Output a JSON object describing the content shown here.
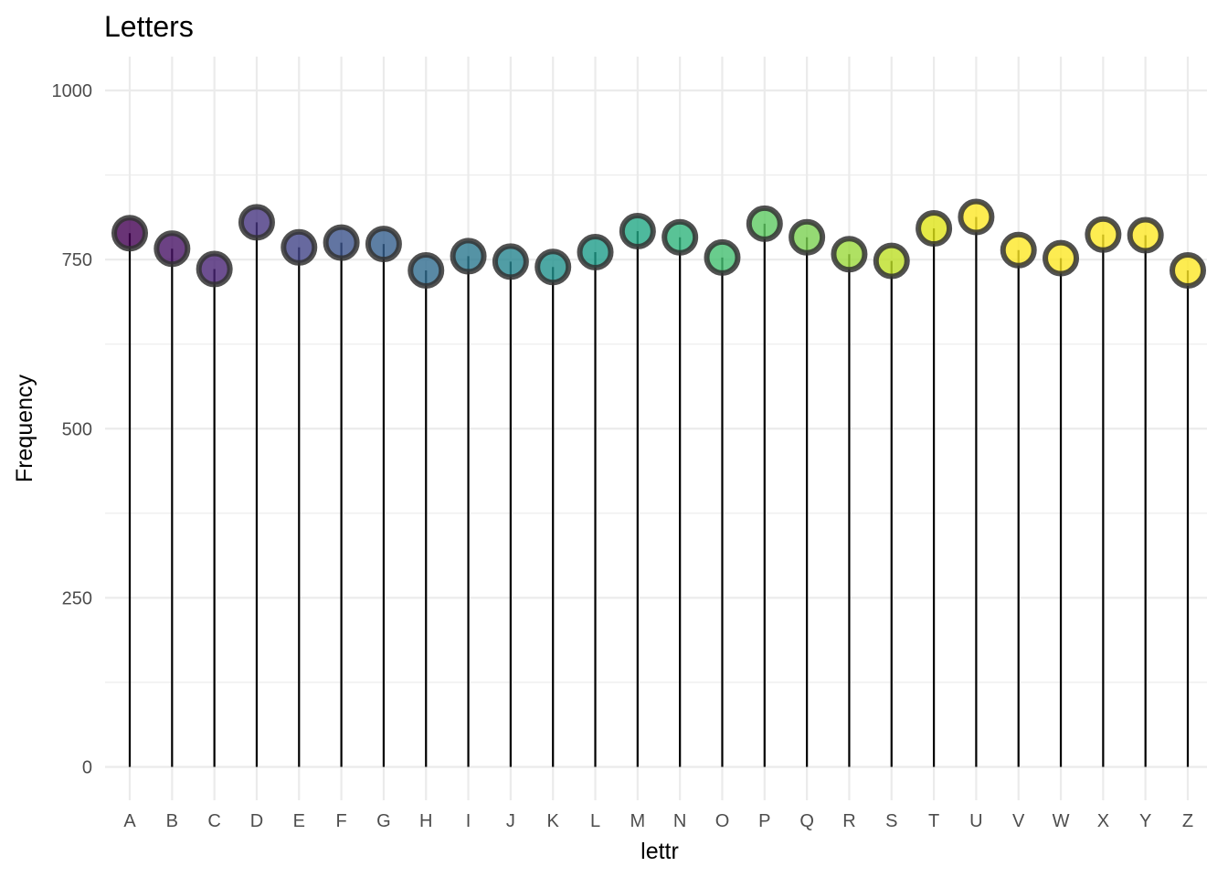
{
  "chart_data": {
    "type": "lollipop",
    "title": "Letters",
    "xlabel": "lettr",
    "ylabel": "Frequency",
    "ylim": [
      -50,
      1050
    ],
    "yticks": [
      0,
      250,
      500,
      750,
      1000
    ],
    "yticks_minor": [
      125,
      375,
      625,
      875
    ],
    "grid": true,
    "legend": "none",
    "categories": [
      "A",
      "B",
      "C",
      "D",
      "E",
      "F",
      "G",
      "H",
      "I",
      "J",
      "K",
      "L",
      "M",
      "N",
      "O",
      "P",
      "Q",
      "R",
      "S",
      "T",
      "U",
      "V",
      "W",
      "X",
      "Y",
      "Z"
    ],
    "values": [
      789,
      766,
      736,
      805,
      768,
      775,
      773,
      734,
      755,
      747,
      739,
      761,
      792,
      783,
      753,
      803,
      783,
      758,
      748,
      796,
      813,
      764,
      752,
      787,
      786,
      734
    ],
    "colors": [
      "#440154",
      "#471365",
      "#482374",
      "#463480",
      "#414487",
      "#3b528b",
      "#355f8d",
      "#2f6c8e",
      "#2a788e",
      "#25858e",
      "#21918c",
      "#1e9c89",
      "#22a884",
      "#2fb47c",
      "#44bf70",
      "#5ec962",
      "#7ad151",
      "#9bd93c",
      "#bddf26",
      "#dfe318",
      "#fde725",
      "#fde725",
      "#fde725",
      "#fde725",
      "#fde725",
      "#fde725"
    ]
  }
}
